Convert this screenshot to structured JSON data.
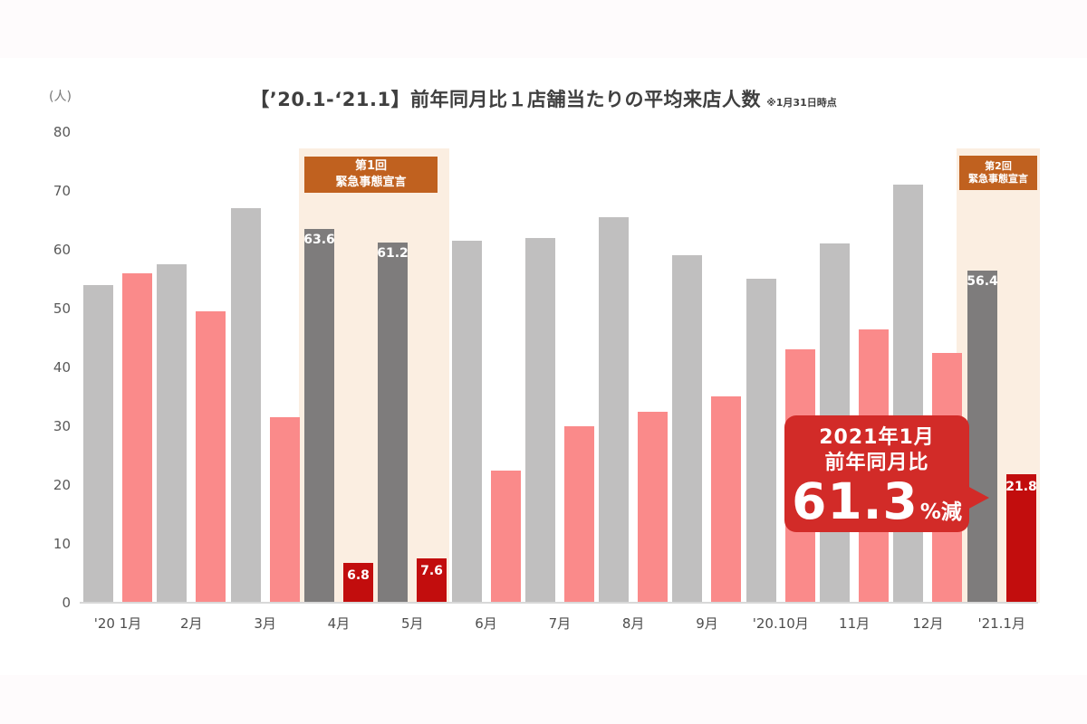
{
  "chart": {
    "title": "【’20.1-‘21.1】前年同月比１店舗当たりの平均来店人数",
    "note": "※1月31日時点",
    "y_unit": "(人)",
    "emergency_1": {
      "line1": "第1回",
      "line2": "緊急事態宣言"
    },
    "emergency_2": {
      "line1": "第2回",
      "line2": "緊急事態宣言"
    },
    "callout": {
      "line1": "2021年1月",
      "line2": "前年同月比",
      "value": "61.3",
      "suffix": "%減"
    }
  },
  "chart_data": {
    "type": "bar",
    "title": "【’20.1-‘21.1】前年同月比１店舗当たりの平均来店人数 ※1月31日時点",
    "ylabel": "(人)",
    "ylim": [
      0,
      80
    ],
    "yticks": [
      0,
      10,
      20,
      30,
      40,
      50,
      60,
      70,
      80
    ],
    "grid": false,
    "legend": "none",
    "categories": [
      "'20 1月",
      "2月",
      "3月",
      "4月",
      "5月",
      "6月",
      "7月",
      "8月",
      "9月",
      "'20.10月",
      "11月",
      "12月",
      "'21.1月"
    ],
    "series": [
      {
        "name": "previous-year",
        "color": "#c0bfbf",
        "highlight_color": "#7e7c7c",
        "values": [
          54,
          57.5,
          67,
          63.6,
          61.2,
          61.5,
          62,
          65.5,
          59,
          55,
          61,
          71,
          56.4
        ]
      },
      {
        "name": "current-year",
        "color": "#fa8a8a",
        "highlight_color": "#c20d0d",
        "values": [
          56,
          49.5,
          31.5,
          6.8,
          7.6,
          22.5,
          30,
          32.5,
          35,
          43,
          46.5,
          42.5,
          21.8
        ]
      }
    ],
    "highlight_indices": [
      3,
      4,
      12
    ],
    "labeled_indices": [
      3,
      4,
      12
    ],
    "annotations": {
      "emergency_1": {
        "label": "第1回緊急事態宣言",
        "months": [
          "4月",
          "5月"
        ]
      },
      "emergency_2": {
        "label": "第2回緊急事態宣言",
        "months": [
          "'21.1月"
        ]
      },
      "callout": {
        "text": "2021年1月 前年同月比 61.3%減",
        "points_to": "'21.1月 current-year 21.8"
      }
    },
    "colors": {
      "band_background": "#fbeee1",
      "band_label_background": "#c0611f",
      "callout_background": "#d22b28",
      "axis_line": "#d8d8d8",
      "axis_text": "#595959",
      "title_text": "#3f3f3f"
    }
  }
}
